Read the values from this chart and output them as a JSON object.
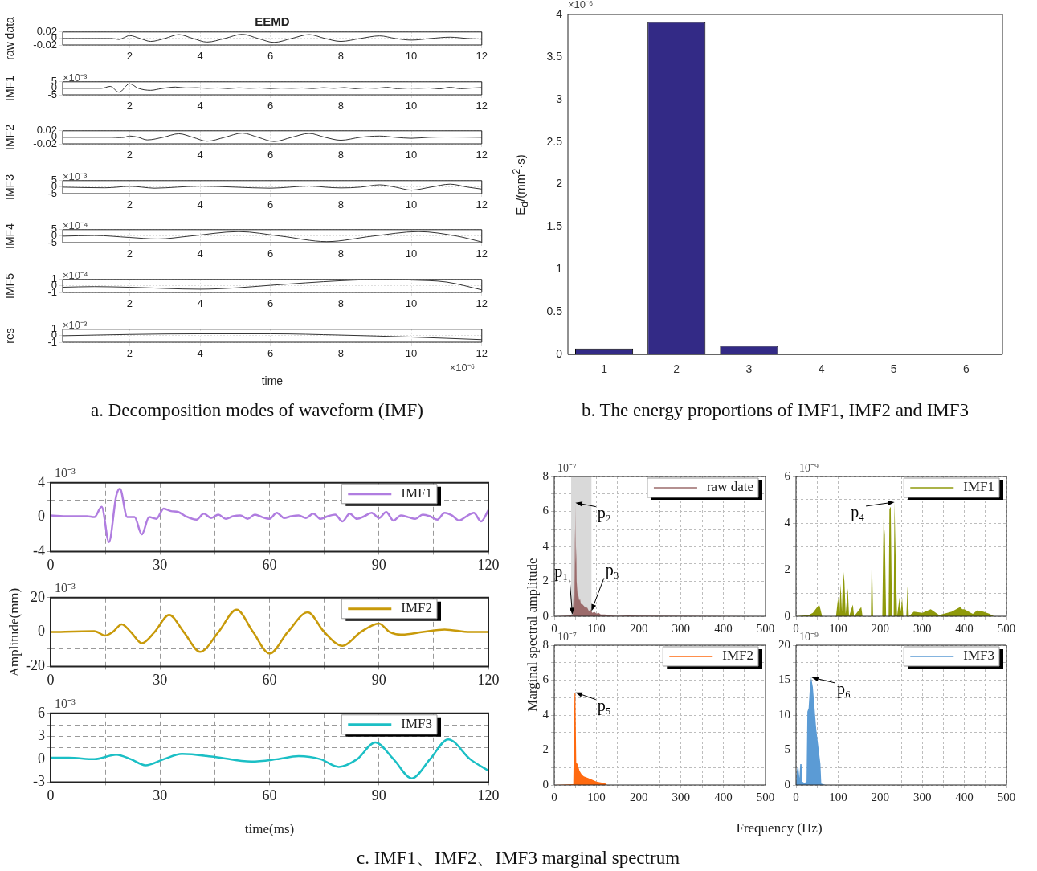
{
  "chart_data": [
    {
      "type": "line",
      "title": "EEMD",
      "ylabel": "raw data",
      "x": [
        0.1,
        1.5,
        1.7,
        1.85,
        2.0,
        2.3,
        2.6,
        3.0,
        3.4,
        3.8,
        4.2,
        4.7,
        5.2,
        5.65,
        6.1,
        6.6,
        7.1,
        7.55,
        8.0,
        8.55,
        9.1,
        9.55,
        10.0,
        10.55,
        11.1,
        11.6,
        12
      ],
      "series": [
        {
          "color": "#333333",
          "values": [
            0,
            0,
            -0.003,
            0.003,
            0.009,
            0,
            -0.009,
            0,
            0.012,
            0,
            -0.011,
            0,
            0.013,
            0,
            -0.012,
            0,
            0.012,
            0,
            -0.009,
            0,
            0.008,
            0,
            -0.005,
            0,
            0.004,
            0,
            -0.002
          ]
        }
      ],
      "xlim": [
        0.1,
        12
      ],
      "xticks": [
        2,
        4,
        6,
        8,
        10,
        12
      ],
      "ylim": [
        -0.02,
        0.02
      ],
      "yticks": [
        -0.02,
        0,
        0.02
      ],
      "grid": true
    },
    {
      "type": "line",
      "ylabel": "IMF1",
      "annotations": [
        "×10⁻³"
      ],
      "x": [
        0.1,
        1.2,
        1.45,
        1.7,
        2.0,
        2.25,
        2.6,
        2.9,
        3.3,
        3.6,
        3.9,
        4.2,
        4.5,
        4.8,
        5.1,
        5.4,
        5.7,
        6.0,
        6.3,
        6.6,
        6.9,
        7.2,
        7.5,
        7.8,
        8.1,
        8.4,
        8.7,
        9.0,
        9.3,
        9.6,
        9.9,
        10.2,
        10.5,
        10.8,
        11.1,
        11.4,
        11.7,
        12
      ],
      "series": [
        {
          "color": "#333333",
          "values": [
            0,
            0,
            1.5,
            -3,
            3.5,
            0,
            -1.5,
            -0.2,
            1.0,
            0.3,
            0.5,
            0,
            0.3,
            -0.2,
            0.4,
            0,
            0.3,
            -0.2,
            0.2,
            0,
            0.3,
            -0.2,
            0.5,
            0,
            0.6,
            -0.3,
            0.3,
            0,
            0.8,
            -0.3,
            0.2,
            0,
            0.3,
            -0.4,
            0.8,
            -0.3,
            0.2,
            0.6
          ]
        }
      ],
      "xlim": [
        0.1,
        12
      ],
      "xticks": [
        2,
        4,
        6,
        8,
        10,
        12
      ],
      "ylim": [
        -5,
        5
      ],
      "yticks": [
        -5,
        0,
        5
      ],
      "grid": true
    },
    {
      "type": "line",
      "ylabel": "IMF2",
      "x": [
        0.1,
        1.5,
        1.7,
        1.85,
        2.0,
        2.25,
        2.5,
        2.95,
        3.4,
        3.8,
        4.2,
        4.7,
        5.2,
        5.65,
        6.1,
        6.6,
        7.1,
        7.55,
        8.0,
        8.55,
        9.1,
        9.55,
        10.0,
        10.5,
        11.0,
        12
      ],
      "series": [
        {
          "color": "#333333",
          "values": [
            0,
            0,
            -0.001,
            0,
            0.004,
            0,
            -0.008,
            0,
            0.011,
            0,
            -0.012,
            0,
            0.013,
            0,
            -0.013,
            0,
            0.012,
            0,
            -0.009,
            0,
            0.004,
            0,
            -0.003,
            0,
            0.001,
            0
          ]
        }
      ],
      "xlim": [
        0.1,
        12
      ],
      "xticks": [
        2,
        4,
        6,
        8,
        10,
        12
      ],
      "ylim": [
        -0.02,
        0.02
      ],
      "yticks": [
        -0.02,
        0,
        0.02
      ],
      "grid": true
    },
    {
      "type": "line",
      "ylabel": "IMF3",
      "annotations": [
        "×10⁻³"
      ],
      "x": [
        0.1,
        1.3,
        1.65,
        2.0,
        2.35,
        2.7,
        3.35,
        4.0,
        5.0,
        6.0,
        6.55,
        7.1,
        7.55,
        8.0,
        8.55,
        9.1,
        9.55,
        10.0,
        10.55,
        11.1,
        11.6,
        12
      ],
      "series": [
        {
          "color": "#333333",
          "values": [
            0,
            -0.5,
            0,
            0.7,
            0,
            -0.8,
            0,
            0.8,
            0,
            -0.8,
            0,
            0.9,
            0,
            -0.6,
            0,
            1.8,
            0,
            -2.3,
            0,
            2.3,
            0,
            -1.5
          ]
        }
      ],
      "xlim": [
        0.1,
        12
      ],
      "xticks": [
        2,
        4,
        6,
        8,
        10,
        12
      ],
      "ylim": [
        -5,
        5
      ],
      "yticks": [
        -5,
        0,
        5
      ],
      "grid": true
    },
    {
      "type": "line",
      "ylabel": "IMF4",
      "annotations": [
        "×10⁻⁴"
      ],
      "x": [
        0.1,
        1.0,
        2.0,
        2.8,
        3.7,
        5.1,
        6.3,
        7.6,
        8.9,
        10.2,
        11.3,
        12
      ],
      "series": [
        {
          "color": "#333333",
          "values": [
            0,
            0.5,
            -1,
            -2.2,
            0,
            3.5,
            0,
            -4.2,
            0,
            3.5,
            0,
            -4.5
          ]
        }
      ],
      "xlim": [
        0.1,
        12
      ],
      "xticks": [
        2,
        4,
        6,
        8,
        10,
        12
      ],
      "ylim": [
        -5,
        5
      ],
      "yticks": [
        -5,
        0,
        5
      ],
      "grid": true
    },
    {
      "type": "line",
      "ylabel": "IMF5",
      "annotations": [
        "×10⁻⁴"
      ],
      "x": [
        0.1,
        1.0,
        2.0,
        4.0,
        5.0,
        6.0,
        8.0,
        9.3,
        10.0,
        11.0,
        12
      ],
      "series": [
        {
          "color": "#333333",
          "values": [
            -0.2,
            -0.1,
            -0.2,
            -0.5,
            -0.3,
            0.1,
            0.8,
            1,
            0.9,
            0.6,
            -0.6
          ]
        }
      ],
      "xlim": [
        0.1,
        12
      ],
      "xticks": [
        2,
        4,
        6,
        8,
        10,
        12
      ],
      "ylim": [
        -1,
        1
      ],
      "yticks": [
        -1,
        0,
        1
      ],
      "grid": true
    },
    {
      "type": "line",
      "ylabel": "res",
      "xlabel": "time",
      "annotations": [
        "×10⁻³",
        "×10⁻⁶",
        "a. Decomposition modes of waveform (IMF)"
      ],
      "x": [
        0.1,
        2,
        4,
        5,
        6,
        8,
        10,
        12
      ],
      "series": [
        {
          "color": "#333333",
          "values": [
            0,
            0.2,
            0.3,
            0.3,
            0.3,
            0.1,
            -0.2,
            -0.6
          ]
        }
      ],
      "xlim": [
        0.1,
        12
      ],
      "xticks": [
        2,
        4,
        6,
        8,
        10,
        12
      ],
      "ylim": [
        -1,
        1
      ],
      "yticks": [
        -1,
        0,
        1
      ],
      "grid": true
    },
    {
      "type": "bar",
      "ylabel": "E$_{d}$/(mm$^{2}$·s)",
      "annotations": [
        "×10⁻⁶",
        "b. The energy proportions of IMF1, IMF2 and IMF3"
      ],
      "categories": [
        "1",
        "2",
        "3",
        "4",
        "5",
        "6"
      ],
      "values": [
        0.07,
        3.91,
        0.1,
        0,
        0,
        0
      ],
      "color": "#332a86",
      "ylim": [
        0,
        4
      ],
      "yticks": [
        0,
        0.5,
        1,
        1.5,
        2,
        2.5,
        3,
        3.5,
        4
      ]
    },
    {
      "type": "line",
      "annotations": [
        "10⁻³"
      ],
      "legend": "top right",
      "x": [
        0,
        5,
        10,
        12,
        14,
        16,
        18,
        19,
        21,
        23,
        25,
        27,
        29,
        31,
        33,
        35,
        37,
        40,
        42,
        44,
        46,
        48,
        50,
        52,
        54,
        56,
        58,
        60,
        62,
        64,
        66,
        68,
        70,
        72,
        74,
        76,
        78,
        80,
        82,
        84,
        86,
        88,
        90,
        92,
        94,
        96,
        98,
        100,
        102,
        104,
        106,
        108,
        110,
        112,
        114,
        116,
        118,
        120
      ],
      "series": [
        {
          "name": "IMF1",
          "color": "#b07de0",
          "values": [
            0.2,
            0.1,
            0.1,
            0,
            1.2,
            -2.9,
            2.5,
            3.3,
            0,
            0,
            -2,
            0,
            -0.2,
            1,
            0.7,
            0.6,
            0.1,
            -0.3,
            0.4,
            -0.1,
            0.3,
            -0.2,
            0.1,
            0.2,
            -0.2,
            0.3,
            0,
            -0.2,
            0.5,
            -0.1,
            0.1,
            0.2,
            -0.1,
            0.4,
            -0.2,
            0.1,
            0.3,
            -0.5,
            0.4,
            -0.2,
            0.1,
            0.5,
            -0.1,
            0.6,
            -0.4,
            0.2,
            0,
            -0.2,
            0.3,
            0.1,
            -0.3,
            0.5,
            0.2,
            -0.4,
            0.1,
            0.5,
            -0.5,
            0.8
          ]
        }
      ],
      "xlim": [
        0,
        120
      ],
      "xticks": [
        0,
        {
          "value": 15,
          "label": null
        },
        30,
        {
          "value": 45,
          "label": null
        },
        60,
        {
          "value": 75,
          "label": null
        },
        90,
        {
          "value": 105,
          "label": null
        },
        120
      ],
      "ylim": [
        -4,
        4
      ],
      "yticks": [
        -4,
        {
          "value": -2,
          "label": null
        },
        0,
        {
          "value": 2,
          "label": null
        },
        4
      ],
      "grid": true
    },
    {
      "type": "line",
      "ylabel": "Amplitude(mm)",
      "annotations": [
        "10⁻³"
      ],
      "legend": "top right",
      "x": [
        0,
        12,
        15,
        17,
        19.5,
        22,
        25,
        28.5,
        32.5,
        36.5,
        41,
        46,
        51,
        55.5,
        60,
        65,
        70.5,
        75,
        80,
        85,
        90,
        93,
        96,
        102,
        108,
        115,
        120
      ],
      "series": [
        {
          "name": "IMF2",
          "color": "#c89a0a",
          "values": [
            0,
            0.5,
            -2,
            0,
            4.5,
            0,
            -6.5,
            0,
            10,
            0,
            -11.5,
            0,
            13,
            0,
            -12.5,
            0,
            11.5,
            0,
            -8,
            0,
            5,
            0,
            -1.5,
            0,
            1.5,
            0,
            0
          ]
        }
      ],
      "xlim": [
        0,
        120
      ],
      "xticks": [
        0,
        {
          "value": 15,
          "label": null
        },
        30,
        {
          "value": 45,
          "label": null
        },
        60,
        {
          "value": 75,
          "label": null
        },
        90,
        {
          "value": 105,
          "label": null
        },
        120
      ],
      "ylim": [
        -20,
        20
      ],
      "yticks": [
        -20,
        {
          "value": -10,
          "label": null
        },
        0,
        {
          "value": 10,
          "label": null
        },
        20
      ],
      "grid": true
    },
    {
      "type": "line",
      "xlabel": "time(ms)",
      "annotations": [
        "10⁻³"
      ],
      "legend": "top right",
      "x": [
        0,
        5,
        12,
        18,
        22,
        26,
        31,
        36,
        45,
        55,
        62,
        68,
        74,
        79,
        84,
        89,
        94,
        99,
        104,
        109,
        115,
        120
      ],
      "series": [
        {
          "name": "IMF3",
          "color": "#1bbfc5",
          "values": [
            0.2,
            0.2,
            0,
            0.6,
            0,
            -0.8,
            0,
            0.7,
            0.3,
            -0.3,
            0,
            0.4,
            0,
            -1.0,
            0,
            2.2,
            0,
            -2.5,
            0,
            2.6,
            0,
            -1.5
          ]
        }
      ],
      "xlim": [
        0,
        120
      ],
      "xticks": [
        0,
        {
          "value": 15,
          "label": null
        },
        30,
        {
          "value": 45,
          "label": null
        },
        60,
        {
          "value": 75,
          "label": null
        },
        90,
        {
          "value": 105,
          "label": null
        },
        120
      ],
      "ylim": [
        -3,
        6
      ],
      "yticks": [
        -3,
        {
          "value": -1.5,
          "label": null
        },
        0,
        {
          "value": 1.5,
          "label": null
        },
        3,
        {
          "value": 4.5,
          "label": null
        },
        6
      ],
      "grid": true
    },
    {
      "type": "area",
      "ylabel": "Marginal spectral amplitude",
      "legend": "top right",
      "annotations": [
        "10⁻⁷",
        {
          "text": "p₁",
          "x": 43,
          "y": 0.1
        },
        {
          "text": "p₂",
          "x": 50,
          "y": 6.5
        },
        {
          "text": "p₃",
          "x": 88,
          "y": 0.3
        }
      ],
      "bands": [
        {
          "axis": "x",
          "from": 40,
          "to": 88,
          "color": "#d9d9d9"
        }
      ],
      "x": [
        0,
        38,
        44,
        46,
        48,
        49,
        50,
        51,
        52,
        53,
        55,
        57,
        59,
        61,
        63,
        66,
        70,
        74,
        78,
        82,
        86,
        90,
        95,
        100,
        105,
        110,
        120,
        130,
        150,
        175,
        200,
        500
      ],
      "series": [
        {
          "name": "raw date",
          "color": "#9b6b6b",
          "values": [
            0,
            0.05,
            0.1,
            1.5,
            5.1,
            0.5,
            6.5,
            3,
            4,
            2,
            1.3,
            1.2,
            0.9,
            1.0,
            0.7,
            0.7,
            0.6,
            0.5,
            0.5,
            0.3,
            0.4,
            0.2,
            0.25,
            0.15,
            0.2,
            0.1,
            0.1,
            0.05,
            0.02,
            0.05,
            0.03,
            0
          ]
        }
      ],
      "xlim": [
        0,
        500
      ],
      "xticks": [
        0,
        {
          "value": 50,
          "label": null
        },
        100,
        {
          "value": 150,
          "label": null
        },
        200,
        {
          "value": 250,
          "label": null
        },
        300,
        {
          "value": 350,
          "label": null
        },
        400,
        {
          "value": 450,
          "label": null
        },
        500
      ],
      "ylim": [
        0,
        8
      ],
      "yticks": [
        0,
        {
          "value": 1,
          "label": null
        },
        2,
        {
          "value": 3,
          "label": null
        },
        4,
        {
          "value": 5,
          "label": null
        },
        6,
        {
          "value": 7,
          "label": null
        },
        8
      ],
      "grid": true
    },
    {
      "type": "area",
      "legend": "top right",
      "annotations": [
        "10⁻⁹",
        {
          "text": "p₄",
          "x": 234,
          "y": 4.9
        }
      ],
      "x": [
        0,
        30,
        40,
        55,
        58,
        62,
        95,
        100,
        103,
        106,
        109,
        112,
        115,
        118,
        123,
        126,
        135,
        138,
        155,
        158,
        178,
        180,
        183,
        205,
        208,
        211,
        214,
        220,
        222,
        225,
        228,
        232,
        234,
        237,
        240,
        246,
        249,
        252,
        255,
        262,
        265,
        268,
        280,
        300,
        320,
        340,
        370,
        390,
        395,
        400,
        420,
        430,
        445,
        460,
        470,
        500
      ],
      "series": [
        {
          "name": "IMF1",
          "color": "#8f9a0b",
          "values": [
            0,
            0.05,
            0.15,
            0.5,
            0.3,
            0,
            0,
            0.8,
            0.1,
            1.4,
            0.2,
            2.0,
            1.5,
            0.1,
            1.2,
            0,
            0.5,
            0,
            0.4,
            0,
            0,
            2.9,
            0,
            0,
            4.2,
            3.5,
            0,
            0,
            4.6,
            4.7,
            0,
            0,
            4.9,
            2.3,
            0,
            0.8,
            0.2,
            0.8,
            0,
            0,
            1.3,
            0,
            0.2,
            0.15,
            0.3,
            0.05,
            0.2,
            0.4,
            0.3,
            0.3,
            0.1,
            0.25,
            0.2,
            0.1,
            0,
            0
          ]
        }
      ],
      "xlim": [
        0,
        500
      ],
      "xticks": [
        0,
        {
          "value": 50,
          "label": null
        },
        100,
        {
          "value": 150,
          "label": null
        },
        200,
        {
          "value": 250,
          "label": null
        },
        300,
        {
          "value": 350,
          "label": null
        },
        400,
        {
          "value": 450,
          "label": null
        },
        500
      ],
      "ylim": [
        0,
        6
      ],
      "yticks": [
        0,
        {
          "value": 1,
          "label": null
        },
        2,
        {
          "value": 3,
          "label": null
        },
        4,
        {
          "value": 5,
          "label": null
        },
        6
      ],
      "grid": true
    },
    {
      "type": "area",
      "xlabel": "Frequency (Hz)",
      "legend": "top right",
      "annotations": [
        "10⁻⁷",
        {
          "text": "p₅",
          "x": 50,
          "y": 5.3
        }
      ],
      "x": [
        0,
        45,
        48,
        50,
        52,
        55,
        60,
        65,
        70,
        80,
        90,
        100,
        110,
        120,
        125,
        500
      ],
      "series": [
        {
          "name": "IMF2",
          "color": "#ff6a10",
          "values": [
            0,
            0.05,
            5.3,
            5.2,
            1.3,
            1.2,
            0.8,
            0.6,
            0.5,
            0.4,
            0.3,
            0.2,
            0.15,
            0.1,
            0,
            0
          ]
        }
      ],
      "xlim": [
        0,
        500
      ],
      "xticks": [
        0,
        {
          "value": 50,
          "label": null
        },
        100,
        {
          "value": 150,
          "label": null
        },
        200,
        {
          "value": 250,
          "label": null
        },
        300,
        {
          "value": 350,
          "label": null
        },
        400,
        {
          "value": 450,
          "label": null
        },
        500
      ],
      "ylim": [
        0,
        8
      ],
      "yticks": [
        0,
        {
          "value": 1,
          "label": null
        },
        2,
        {
          "value": 3,
          "label": null
        },
        4,
        {
          "value": 5,
          "label": null
        },
        6,
        {
          "value": 7,
          "label": null
        },
        8
      ],
      "grid": true
    },
    {
      "type": "area",
      "legend": "top right",
      "annotations": [
        "10⁻⁹",
        {
          "text": "p₆",
          "x": 37,
          "y": 15.4
        },
        "c. IMF1、IMF2、IMF3 marginal spectrum"
      ],
      "x": [
        0,
        2,
        5,
        8,
        10,
        13,
        15,
        20,
        25,
        27,
        30,
        33,
        36,
        40,
        44,
        48,
        52,
        56,
        58,
        60,
        70,
        500
      ],
      "series": [
        {
          "name": "IMF3",
          "color": "#5b9bd5",
          "values": [
            0,
            2,
            3,
            1,
            3,
            3,
            0.5,
            0.3,
            0.5,
            10.5,
            11,
            14,
            15.4,
            14,
            11,
            8,
            6,
            4,
            3,
            0.2,
            0,
            0
          ]
        }
      ],
      "xlim": [
        0,
        500
      ],
      "xticks": [
        0,
        {
          "value": 50,
          "label": null
        },
        100,
        {
          "value": 150,
          "label": null
        },
        200,
        {
          "value": 250,
          "label": null
        },
        300,
        {
          "value": 350,
          "label": null
        },
        400,
        {
          "value": 450,
          "label": null
        },
        500
      ],
      "ylim": [
        0,
        20
      ],
      "yticks": [
        0,
        {
          "value": 2.5,
          "label": null
        },
        5,
        {
          "value": 7.5,
          "label": null
        },
        10,
        {
          "value": 12.5,
          "label": null
        },
        15,
        {
          "value": 17.5,
          "label": null
        },
        20
      ],
      "grid": true
    }
  ]
}
